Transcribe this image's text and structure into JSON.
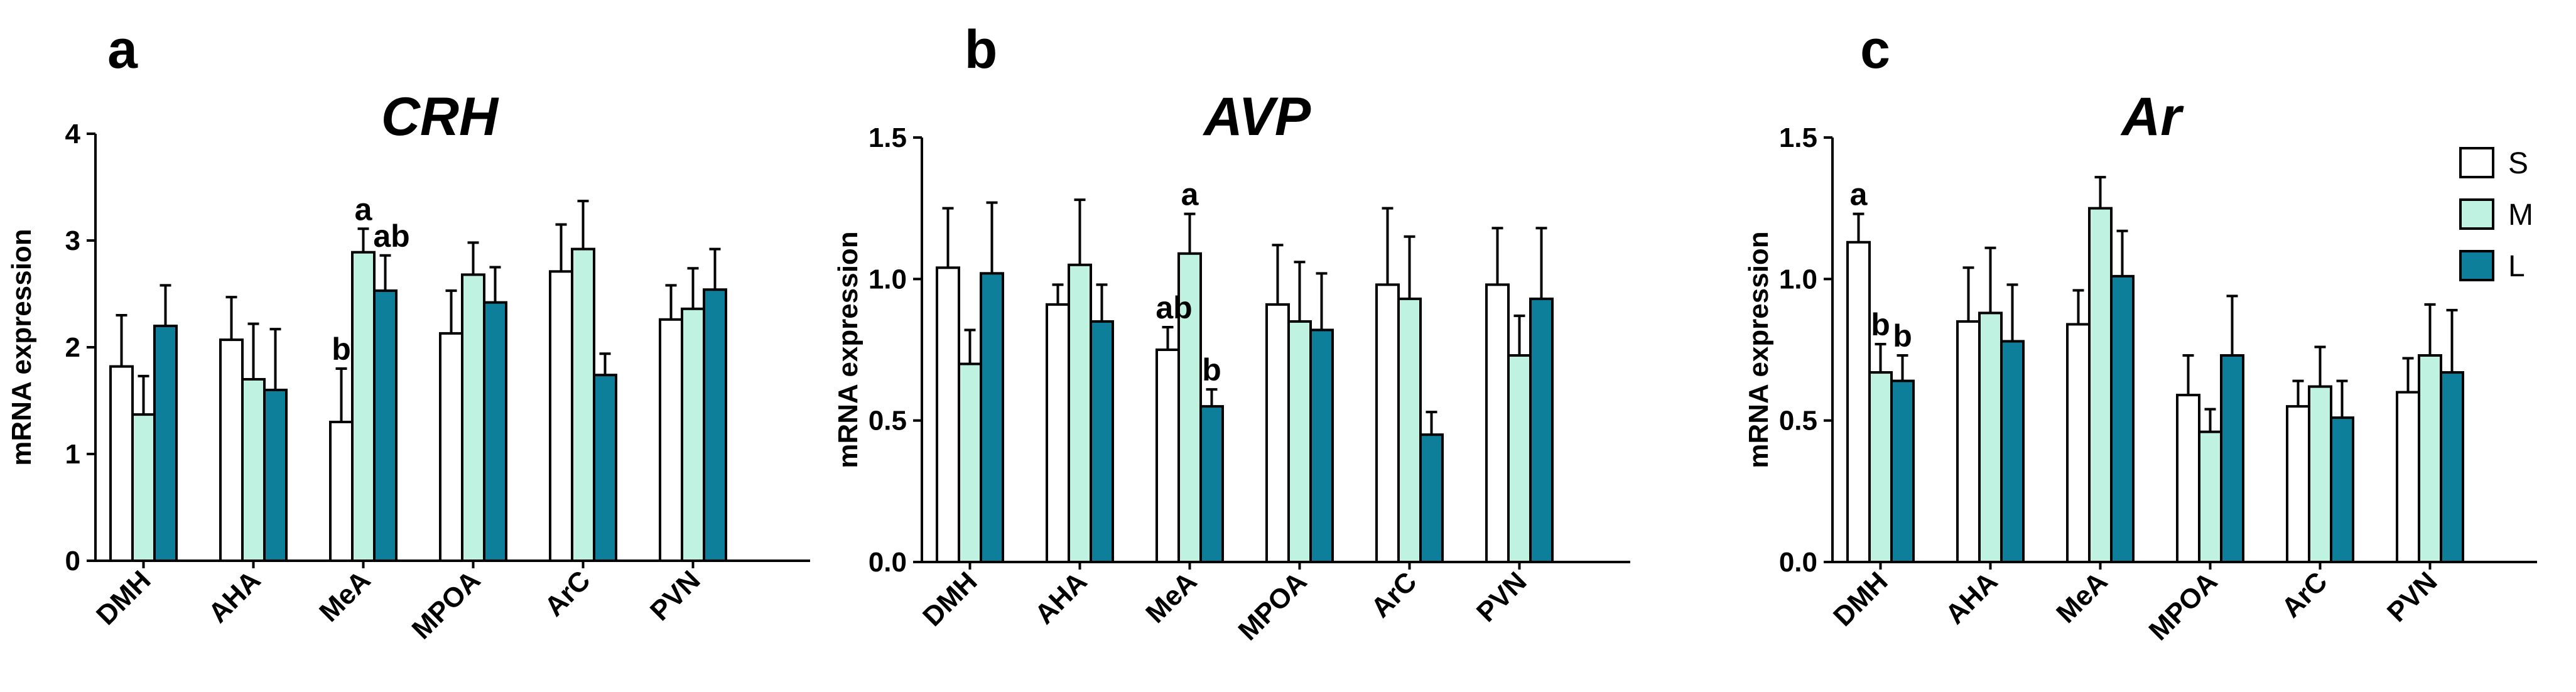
{
  "legend": {
    "items": [
      {
        "name": "S",
        "color": "#ffffff"
      },
      {
        "name": "M",
        "color": "#bff2e0"
      },
      {
        "name": "L",
        "color": "#0e7f9b"
      }
    ]
  },
  "chart_data": [
    {
      "type": "bar",
      "panel": "a",
      "title": "CRH",
      "xlabel": "",
      "ylabel": "mRNA expression",
      "ylim": [
        0,
        4
      ],
      "yticks": [
        "0",
        "1",
        "2",
        "3",
        "4"
      ],
      "categories": [
        "DMH",
        "AHA",
        "MeA",
        "MPOA",
        "ArC",
        "PVN"
      ],
      "series": [
        {
          "name": "S",
          "values": [
            1.82,
            2.07,
            1.3,
            2.13,
            2.71,
            2.26
          ],
          "errors": [
            0.48,
            0.4,
            0.5,
            0.4,
            0.44,
            0.32
          ]
        },
        {
          "name": "M",
          "values": [
            1.37,
            1.7,
            2.89,
            2.68,
            2.92,
            2.36
          ],
          "errors": [
            0.36,
            0.52,
            0.22,
            0.3,
            0.45,
            0.38
          ]
        },
        {
          "name": "L",
          "values": [
            2.2,
            1.6,
            2.53,
            2.42,
            1.74,
            2.54
          ],
          "errors": [
            0.38,
            0.57,
            0.33,
            0.33,
            0.2,
            0.38
          ]
        }
      ],
      "annotations": [
        {
          "text": "b",
          "category": "MeA",
          "series": "S"
        },
        {
          "text": "a",
          "category": "MeA",
          "series": "M"
        },
        {
          "text": "ab",
          "category": "MeA",
          "series": "L"
        }
      ]
    },
    {
      "type": "bar",
      "panel": "b",
      "title": "AVP",
      "xlabel": "",
      "ylabel": "mRNA expression",
      "ylim": [
        0,
        1.5
      ],
      "yticks": [
        "0.0",
        "0.5",
        "1.0",
        "1.5"
      ],
      "categories": [
        "DMH",
        "AHA",
        "MeA",
        "MPOA",
        "ArC",
        "PVN"
      ],
      "series": [
        {
          "name": "S",
          "values": [
            1.04,
            0.91,
            0.75,
            0.91,
            0.98,
            0.98
          ],
          "errors": [
            0.21,
            0.07,
            0.08,
            0.21,
            0.27,
            0.2
          ]
        },
        {
          "name": "M",
          "values": [
            0.7,
            1.05,
            1.09,
            0.85,
            0.93,
            0.73
          ],
          "errors": [
            0.12,
            0.23,
            0.14,
            0.21,
            0.22,
            0.14
          ]
        },
        {
          "name": "L",
          "values": [
            1.02,
            0.85,
            0.55,
            0.82,
            0.45,
            0.93
          ],
          "errors": [
            0.25,
            0.13,
            0.06,
            0.2,
            0.08,
            0.25
          ]
        }
      ],
      "annotations": [
        {
          "text": "ab",
          "category": "MeA",
          "series": "S"
        },
        {
          "text": "a",
          "category": "MeA",
          "series": "M"
        },
        {
          "text": "b",
          "category": "MeA",
          "series": "L"
        }
      ]
    },
    {
      "type": "bar",
      "panel": "c",
      "title": "Ar",
      "xlabel": "",
      "ylabel": "mRNA expression",
      "ylim": [
        0,
        1.5
      ],
      "yticks": [
        "0.0",
        "0.5",
        "1.0",
        "1.5"
      ],
      "categories": [
        "DMH",
        "AHA",
        "MeA",
        "MPOA",
        "ArC",
        "PVN"
      ],
      "series": [
        {
          "name": "S",
          "values": [
            1.13,
            0.85,
            0.84,
            0.59,
            0.55,
            0.6
          ],
          "errors": [
            0.1,
            0.19,
            0.12,
            0.14,
            0.09,
            0.12
          ]
        },
        {
          "name": "M",
          "values": [
            0.67,
            0.88,
            1.25,
            0.46,
            0.62,
            0.73
          ],
          "errors": [
            0.1,
            0.23,
            0.11,
            0.08,
            0.14,
            0.18
          ]
        },
        {
          "name": "L",
          "values": [
            0.64,
            0.78,
            1.01,
            0.73,
            0.51,
            0.67
          ],
          "errors": [
            0.09,
            0.2,
            0.16,
            0.21,
            0.13,
            0.22
          ]
        }
      ],
      "annotations": [
        {
          "text": "a",
          "category": "DMH",
          "series": "S"
        },
        {
          "text": "b",
          "category": "DMH",
          "series": "M"
        },
        {
          "text": "b",
          "category": "DMH",
          "series": "L"
        }
      ]
    }
  ]
}
